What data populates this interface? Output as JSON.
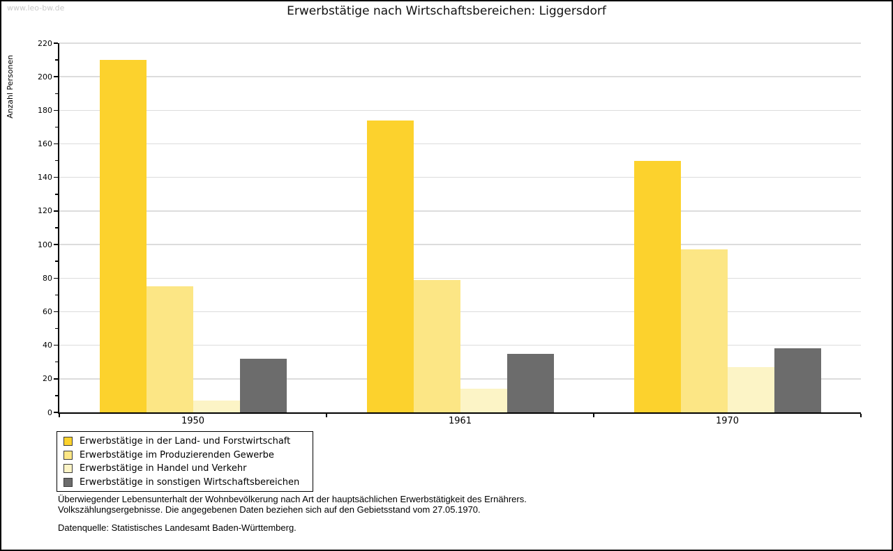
{
  "watermark": "www.leo-bw.de",
  "chart_data": {
    "type": "bar",
    "title": "Erwerbstätige nach Wirtschaftsbereichen: Liggersdorf",
    "ylabel": "Anzahl Personen",
    "xlabel": "",
    "categories": [
      "1950",
      "1961",
      "1970"
    ],
    "series": [
      {
        "name": "Erwerbstätige in der Land- und Forstwirtschaft",
        "color": "#FCD22D",
        "values": [
          210,
          174,
          150
        ]
      },
      {
        "name": "Erwerbstätige im Produzierenden Gewerbe",
        "color": "#FCE685",
        "values": [
          75,
          79,
          97
        ]
      },
      {
        "name": "Erwerbstätige in Handel und Verkehr",
        "color": "#FCF4C6",
        "values": [
          7,
          14,
          27
        ]
      },
      {
        "name": "Erwerbstätige in sonstigen Wirtschaftsbereichen",
        "color": "#6C6C6C",
        "values": [
          32,
          35,
          38
        ]
      }
    ],
    "ylim": [
      0,
      220
    ],
    "yticks": [
      0,
      20,
      40,
      60,
      80,
      100,
      120,
      140,
      160,
      180,
      200,
      220
    ],
    "yminor_step": 10,
    "grid": true,
    "grid_color": "#dcdcdc",
    "legend_position": "bottom-left"
  },
  "footnotes": {
    "line1": "Überwiegender Lebensunterhalt der Wohnbevölkerung nach Art der hauptsächlichen Erwerbstätigkeit des Ernährers.",
    "line2": "Volkszählungsergebnisse. Die angegebenen Daten beziehen sich auf den Gebietsstand vom 27.05.1970.",
    "source": "Datenquelle: Statistisches Landesamt Baden-Württemberg."
  }
}
